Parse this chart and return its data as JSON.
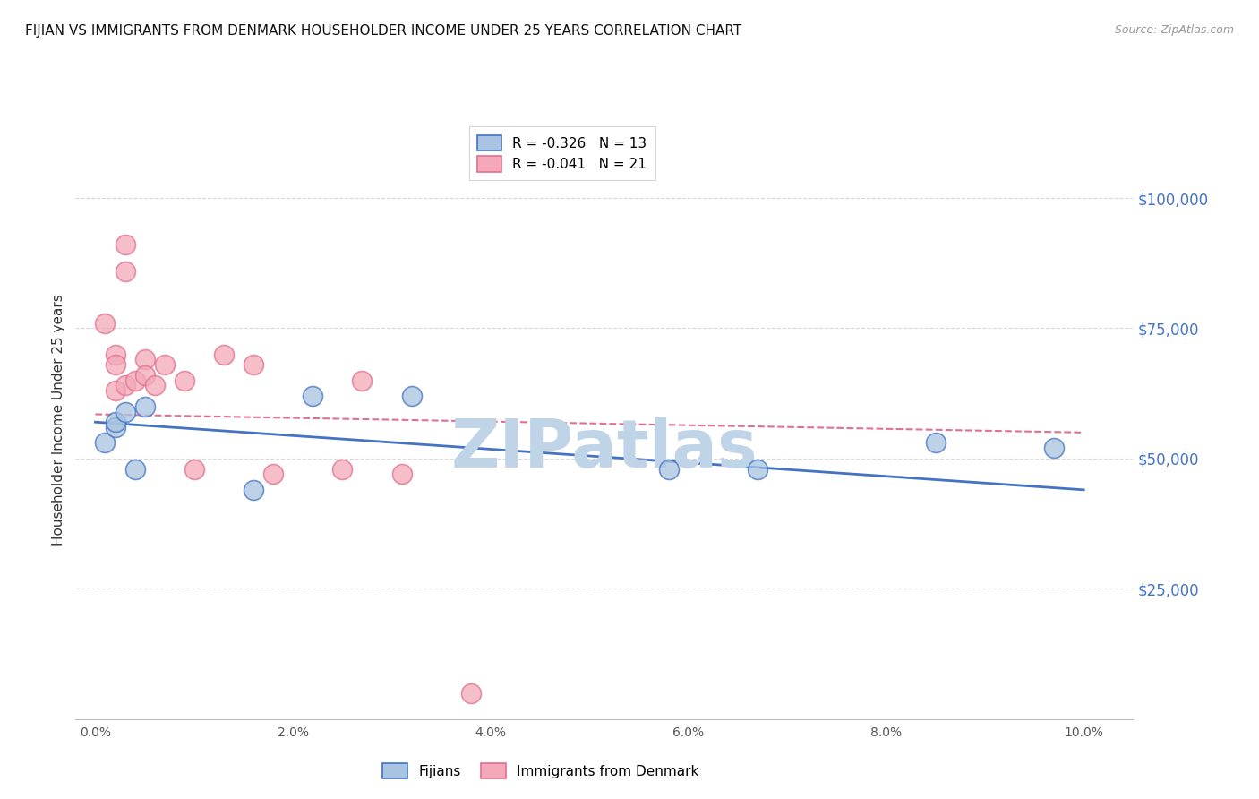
{
  "title": "FIJIAN VS IMMIGRANTS FROM DENMARK HOUSEHOLDER INCOME UNDER 25 YEARS CORRELATION CHART",
  "source": "Source: ZipAtlas.com",
  "ylabel": "Householder Income Under 25 years",
  "watermark": "ZIPatlas",
  "legend_entries": [
    {
      "label": "R = -0.326   N = 13",
      "color": "#a8c4e0"
    },
    {
      "label": "R = -0.041   N = 21",
      "color": "#f4a8b8"
    }
  ],
  "bottom_legend": [
    {
      "label": "Fijians",
      "color": "#a8c4e0"
    },
    {
      "label": "Immigrants from Denmark",
      "color": "#f4a8b8"
    }
  ],
  "fijians_x": [
    0.001,
    0.002,
    0.002,
    0.003,
    0.004,
    0.005,
    0.016,
    0.022,
    0.032,
    0.058,
    0.067,
    0.085,
    0.097
  ],
  "fijians_y": [
    53000,
    56000,
    57000,
    59000,
    48000,
    60000,
    44000,
    62000,
    62000,
    48000,
    48000,
    53000,
    52000
  ],
  "denmark_x": [
    0.001,
    0.002,
    0.002,
    0.002,
    0.003,
    0.003,
    0.003,
    0.004,
    0.005,
    0.005,
    0.006,
    0.007,
    0.009,
    0.01,
    0.013,
    0.016,
    0.018,
    0.025,
    0.027,
    0.031,
    0.038
  ],
  "denmark_y": [
    76000,
    70000,
    63000,
    68000,
    91000,
    86000,
    64000,
    65000,
    69000,
    66000,
    64000,
    68000,
    65000,
    48000,
    70000,
    68000,
    47000,
    48000,
    65000,
    47000,
    5000
  ],
  "fijian_line_x": [
    0.0,
    0.1
  ],
  "fijian_line_y": [
    57000,
    44000
  ],
  "denmark_line_x": [
    0.0,
    0.1
  ],
  "denmark_line_y": [
    58500,
    55000
  ],
  "xlim": [
    -0.002,
    0.105
  ],
  "ylim": [
    0,
    115000
  ],
  "xticks": [
    0.0,
    0.02,
    0.04,
    0.06,
    0.08,
    0.1
  ],
  "xtick_labels": [
    "0.0%",
    "2.0%",
    "4.0%",
    "6.0%",
    "8.0%",
    "10.0%"
  ],
  "yticks_right": [
    0,
    25000,
    50000,
    75000,
    100000
  ],
  "ytick_labels_right": [
    "",
    "$25,000",
    "$50,000",
    "$75,000",
    "$100,000"
  ],
  "hgrid_vals": [
    25000,
    50000,
    75000,
    100000
  ],
  "grid_color": "#d8d8d8",
  "fijian_color": "#a8c4e0",
  "denmark_color": "#f4a8b8",
  "fijian_line_color": "#4472c4",
  "denmark_line_color": "#e07090",
  "background_color": "#ffffff",
  "title_fontsize": 11,
  "watermark_color": "#c0d4e8",
  "right_label_color": "#4472c4"
}
